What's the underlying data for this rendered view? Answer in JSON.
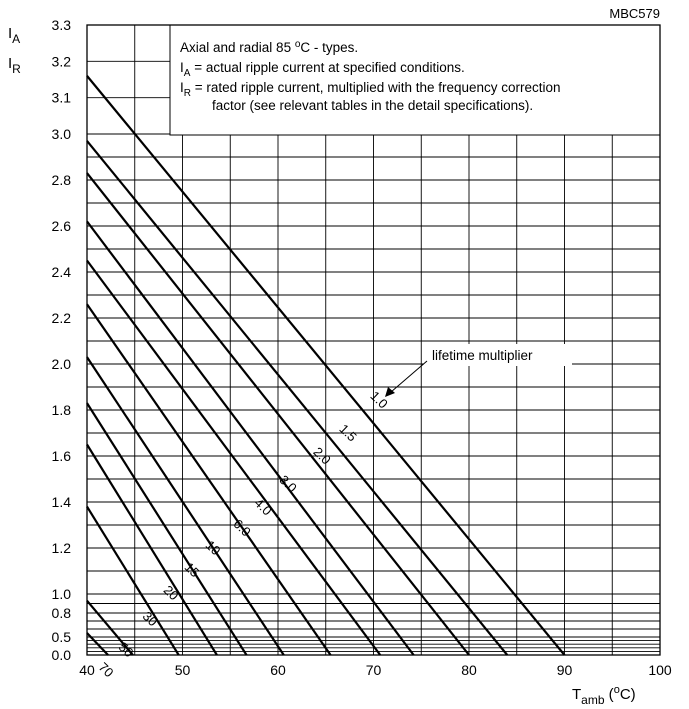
{
  "chart_data": {
    "type": "line",
    "figure_code": "MBC579",
    "ylabel_top": "I",
    "ylabel_top_sub": "A",
    "ylabel_bottom": "I",
    "ylabel_bottom_sub": "R",
    "xlabel_main": "T",
    "xlabel_sub": "amb",
    "xlabel_unit_open": " (",
    "xlabel_unit_sup": "o",
    "xlabel_unit_close": "C)",
    "xlim": [
      40,
      100
    ],
    "ylim": [
      0.0,
      3.3
    ],
    "x_ticks": [
      40,
      50,
      60,
      70,
      80,
      90,
      100
    ],
    "y_ticks": [
      "0.0",
      "0.5",
      "0.8",
      "1.0",
      "1.2",
      "1.4",
      "1.6",
      "1.8",
      "2.0",
      "2.2",
      "2.4",
      "2.6",
      "2.8",
      "3.0",
      "3.1",
      "3.2",
      "3.3"
    ],
    "grid": true,
    "annotation": {
      "line1_a": "Axial and radial 85 ",
      "line1_sup": "o",
      "line1_b": "C - types.",
      "line2_a": "I",
      "line2_sub": "A",
      "line2_b": " = actual ripple current at specified conditions.",
      "line3_a": "I",
      "line3_sub": "R",
      "line3_b": " = rated ripple current, multiplied with the frequency correction",
      "line4": "factor (see relevant tables in the detail specifications)."
    },
    "callout": "lifetime multiplier",
    "series": [
      {
        "name": "1.0",
        "x": [
          40,
          90
        ],
        "y": [
          3.16,
          0.0
        ]
      },
      {
        "name": "1.5",
        "x": [
          40,
          84
        ],
        "y": [
          2.97,
          0.0
        ]
      },
      {
        "name": "2.0",
        "x": [
          40,
          80
        ],
        "y": [
          2.83,
          0.0
        ]
      },
      {
        "name": "3.0",
        "x": [
          40,
          74.2
        ],
        "y": [
          2.62,
          0.0
        ]
      },
      {
        "name": "4.0",
        "x": [
          40,
          70.7
        ],
        "y": [
          2.45,
          0.0
        ]
      },
      {
        "name": "6.0",
        "x": [
          40,
          65.5
        ],
        "y": [
          2.26,
          0.0
        ]
      },
      {
        "name": "10",
        "x": [
          40,
          60.6
        ],
        "y": [
          2.03,
          0.0
        ]
      },
      {
        "name": "15",
        "x": [
          40,
          56.7
        ],
        "y": [
          1.83,
          0.0
        ]
      },
      {
        "name": "20",
        "x": [
          40,
          53.6
        ],
        "y": [
          1.65,
          0.0
        ]
      },
      {
        "name": "30",
        "x": [
          40,
          49.6
        ],
        "y": [
          1.38,
          0.0
        ]
      },
      {
        "name": "50",
        "x": [
          40,
          44.8
        ],
        "y": [
          0.93,
          0.0
        ]
      },
      {
        "name": "70",
        "x": [
          40,
          42.2
        ],
        "y": [
          0.55,
          0.0
        ]
      }
    ]
  }
}
